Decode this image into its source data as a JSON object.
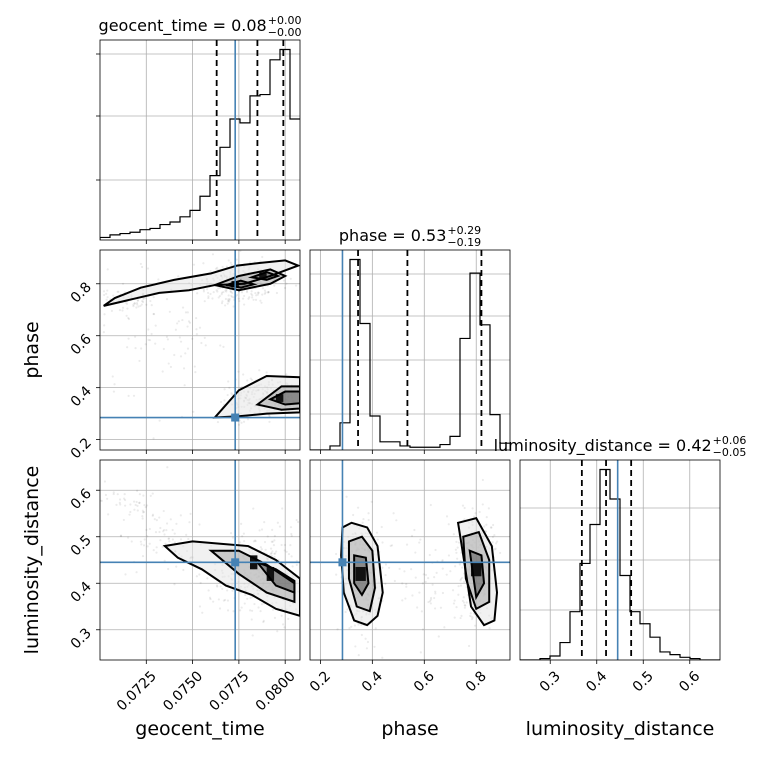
{
  "chart_data": {
    "type": "corner",
    "parameters": [
      "geocent_time",
      "phase",
      "luminosity_distance"
    ],
    "axis_labels": {
      "geocent_time": "geocent_time",
      "phase": "phase",
      "luminosity_distance": "luminosity_distance"
    },
    "ranges": {
      "geocent_time": [
        0.07,
        0.0808
      ],
      "phase": [
        0.16,
        0.93
      ],
      "luminosity_distance": [
        0.235,
        0.665
      ]
    },
    "ticks": {
      "geocent_time": [
        0.0725,
        0.075,
        0.0775,
        0.08
      ],
      "phase_x": [
        0.2,
        0.4,
        0.6,
        0.8
      ],
      "phase_y": [
        0.2,
        0.4,
        0.6,
        0.8
      ],
      "luminosity_distance_x": [
        0.3,
        0.4,
        0.5,
        0.6
      ],
      "luminosity_distance_y": [
        0.3,
        0.4,
        0.5,
        0.6
      ]
    },
    "tick_labels": {
      "geocent_time": [
        "0.0725",
        "0.0750",
        "0.0775",
        "0.0800"
      ],
      "phase": [
        "0.2",
        "0.4",
        "0.6",
        "0.8"
      ],
      "luminosity_distance": [
        "0.3",
        "0.4",
        "0.5",
        "0.6"
      ]
    },
    "truths": {
      "geocent_time": 0.0773,
      "phase": 0.285,
      "luminosity_distance": 0.445
    },
    "titles": {
      "geocent_time": {
        "prefix": "geocent_time = 0.08",
        "plus": "+0.00",
        "minus": "−0.00"
      },
      "phase": {
        "prefix": "phase = 0.53",
        "plus": "+0.29",
        "minus": "−0.19"
      },
      "luminosity_distance": {
        "prefix": "luminosity_distance = 0.42",
        "plus": "+0.06",
        "minus": "−0.05"
      }
    },
    "quantiles": {
      "geocent_time": [
        0.0763,
        0.0785,
        0.0799
      ],
      "phase": [
        0.345,
        0.535,
        0.82
      ],
      "luminosity_distance": [
        0.368,
        0.42,
        0.474
      ]
    },
    "histograms": {
      "geocent_time": {
        "edges": [
          0.07,
          0.07054,
          0.07108,
          0.07162,
          0.07216,
          0.0727,
          0.07324,
          0.07378,
          0.07432,
          0.07486,
          0.0754,
          0.07594,
          0.07648,
          0.07702,
          0.07756,
          0.0781,
          0.07864,
          0.07918,
          0.07972,
          0.08026,
          0.0808
        ],
        "counts": [
          2,
          4,
          5,
          6,
          8,
          9,
          12,
          14,
          18,
          23,
          34,
          50,
          72,
          94,
          91,
          112,
          113,
          140,
          148,
          94
        ]
      },
      "phase": {
        "edges": [
          0.16,
          0.1985,
          0.237,
          0.2755,
          0.314,
          0.3525,
          0.391,
          0.4295,
          0.468,
          0.5065,
          0.545,
          0.5835,
          0.622,
          0.6605,
          0.699,
          0.7375,
          0.776,
          0.8145,
          0.853,
          0.8915,
          0.93
        ],
        "counts": [
          0,
          0,
          3,
          20,
          140,
          93,
          25,
          6,
          6,
          3,
          2,
          2,
          2,
          4,
          10,
          82,
          130,
          92,
          26,
          5
        ]
      },
      "luminosity_distance": {
        "edges": [
          0.235,
          0.2565,
          0.278,
          0.2995,
          0.321,
          0.3425,
          0.364,
          0.3855,
          0.407,
          0.4285,
          0.45,
          0.4715,
          0.493,
          0.5145,
          0.536,
          0.5575,
          0.579,
          0.6005,
          0.622,
          0.6435,
          0.665
        ],
        "counts": [
          0,
          0,
          1,
          3,
          13,
          36,
          72,
          101,
          142,
          120,
          63,
          36,
          27,
          17,
          6,
          4,
          2,
          1,
          0,
          0
        ]
      }
    },
    "contours_2d": {
      "phase_vs_geocent_time": [
        {
          "label": "upper-outer",
          "x": [
            0.0702,
            0.072,
            0.0732,
            0.0748,
            0.0762,
            0.0778,
            0.0792,
            0.0807,
            0.08,
            0.0786,
            0.0774,
            0.076,
            0.074,
            0.0722,
            0.0708,
            0.0702
          ],
          "y": [
            0.715,
            0.745,
            0.765,
            0.775,
            0.795,
            0.8,
            0.83,
            0.87,
            0.89,
            0.88,
            0.87,
            0.84,
            0.815,
            0.785,
            0.745,
            0.715
          ]
        },
        {
          "label": "upper-mid",
          "x": [
            0.0762,
            0.0775,
            0.0792,
            0.08,
            0.0792,
            0.0775,
            0.0762
          ],
          "y": [
            0.795,
            0.775,
            0.8,
            0.83,
            0.855,
            0.83,
            0.795
          ]
        },
        {
          "label": "upper-inner",
          "x": [
            0.0768,
            0.0776,
            0.0783,
            0.0776,
            0.0768
          ],
          "y": [
            0.795,
            0.785,
            0.798,
            0.812,
            0.795
          ]
        },
        {
          "label": "upper-inner-2",
          "x": [
            0.0782,
            0.079,
            0.0796,
            0.079,
            0.0782
          ],
          "y": [
            0.825,
            0.815,
            0.83,
            0.845,
            0.825
          ]
        },
        {
          "label": "lower-outer",
          "x": [
            0.0762,
            0.0775,
            0.079,
            0.0808,
            0.0808,
            0.079,
            0.0775,
            0.0762
          ],
          "y": [
            0.285,
            0.29,
            0.3,
            0.305,
            0.44,
            0.445,
            0.39,
            0.285
          ]
        },
        {
          "label": "lower-mid",
          "x": [
            0.0785,
            0.0798,
            0.0808,
            0.0808,
            0.0798,
            0.0785
          ],
          "y": [
            0.335,
            0.315,
            0.32,
            0.405,
            0.405,
            0.335
          ]
        },
        {
          "label": "lower-inner",
          "x": [
            0.0792,
            0.08,
            0.0808,
            0.0808,
            0.08,
            0.0792
          ],
          "y": [
            0.355,
            0.335,
            0.34,
            0.385,
            0.385,
            0.355
          ]
        }
      ],
      "luminosity_distance_vs_geocent_time": [
        {
          "label": "outer",
          "x": [
            0.0735,
            0.075,
            0.0765,
            0.078,
            0.0795,
            0.0808,
            0.0808,
            0.0795,
            0.0782,
            0.0768,
            0.0755,
            0.0742,
            0.0735
          ],
          "y": [
            0.48,
            0.49,
            0.485,
            0.48,
            0.45,
            0.41,
            0.33,
            0.345,
            0.375,
            0.395,
            0.43,
            0.455,
            0.48
          ]
        },
        {
          "label": "mid",
          "x": [
            0.076,
            0.0775,
            0.079,
            0.0805,
            0.0805,
            0.079,
            0.0775,
            0.076
          ],
          "y": [
            0.47,
            0.47,
            0.44,
            0.4,
            0.36,
            0.38,
            0.42,
            0.47
          ]
        },
        {
          "label": "inner",
          "x": [
            0.0785,
            0.0795,
            0.0805,
            0.0805,
            0.0795,
            0.0785
          ],
          "y": [
            0.445,
            0.43,
            0.405,
            0.38,
            0.395,
            0.445
          ]
        }
      ],
      "luminosity_distance_vs_phase": [
        {
          "label": "left-outer",
          "x": [
            0.285,
            0.32,
            0.38,
            0.42,
            0.44,
            0.42,
            0.38,
            0.33,
            0.29,
            0.28,
            0.285
          ],
          "y": [
            0.52,
            0.53,
            0.52,
            0.48,
            0.38,
            0.33,
            0.31,
            0.32,
            0.38,
            0.46,
            0.52
          ]
        },
        {
          "label": "left-mid",
          "x": [
            0.31,
            0.36,
            0.4,
            0.41,
            0.39,
            0.34,
            0.31,
            0.31
          ],
          "y": [
            0.49,
            0.5,
            0.47,
            0.39,
            0.34,
            0.35,
            0.41,
            0.49
          ]
        },
        {
          "label": "left-inner",
          "x": [
            0.33,
            0.375,
            0.385,
            0.36,
            0.33,
            0.33
          ],
          "y": [
            0.46,
            0.455,
            0.4,
            0.375,
            0.4,
            0.46
          ]
        },
        {
          "label": "right-outer",
          "x": [
            0.73,
            0.8,
            0.86,
            0.88,
            0.87,
            0.83,
            0.78,
            0.75,
            0.73
          ],
          "y": [
            0.53,
            0.54,
            0.48,
            0.38,
            0.32,
            0.31,
            0.35,
            0.46,
            0.53
          ]
        },
        {
          "label": "right-mid",
          "x": [
            0.75,
            0.81,
            0.85,
            0.85,
            0.8,
            0.76,
            0.75
          ],
          "y": [
            0.5,
            0.51,
            0.45,
            0.36,
            0.345,
            0.41,
            0.5
          ]
        },
        {
          "label": "right-inner",
          "x": [
            0.775,
            0.82,
            0.83,
            0.8,
            0.775
          ],
          "y": [
            0.47,
            0.46,
            0.4,
            0.37,
            0.47
          ]
        }
      ]
    },
    "density_peaks": {
      "phase_vs_geocent_time": [
        {
          "x": 0.0773,
          "y": 0.798,
          "w": 0.0004,
          "h": 0.025
        },
        {
          "x": 0.0788,
          "y": 0.832,
          "w": 0.0004,
          "h": 0.025
        },
        {
          "x": 0.0797,
          "y": 0.36,
          "w": 0.0004,
          "h": 0.03
        }
      ],
      "luminosity_distance_vs_geocent_time": [
        {
          "x": 0.0792,
          "y": 0.42,
          "w": 0.0004,
          "h": 0.03
        },
        {
          "x": 0.0783,
          "y": 0.445,
          "w": 0.0004,
          "h": 0.03
        }
      ],
      "luminosity_distance_vs_phase": [
        {
          "x": 0.355,
          "y": 0.42,
          "w": 0.04,
          "h": 0.03
        },
        {
          "x": 0.8,
          "y": 0.43,
          "w": 0.04,
          "h": 0.03
        }
      ]
    },
    "grid": true
  }
}
